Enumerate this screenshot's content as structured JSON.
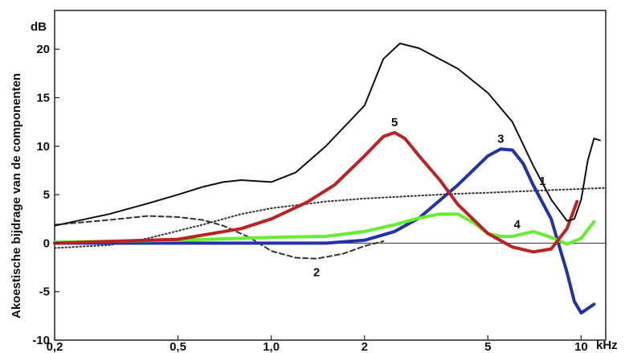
{
  "chart_data": {
    "type": "line",
    "title": "",
    "xlabel": "kHz",
    "ylabel": "Akoestische bijdrage van de componenten",
    "yunit": "dB",
    "x_scale": "log",
    "xlim": [
      0.2,
      12
    ],
    "ylim": [
      -10,
      24
    ],
    "x_ticks": [
      {
        "value": 0.2,
        "label": "0,2"
      },
      {
        "value": 0.5,
        "label": "0,5"
      },
      {
        "value": 1.0,
        "label": "1,0"
      },
      {
        "value": 2,
        "label": "2"
      },
      {
        "value": 5,
        "label": "5"
      },
      {
        "value": 10,
        "label": "10"
      }
    ],
    "y_ticks": [
      {
        "value": 20,
        "label": "20"
      },
      {
        "value": 15,
        "label": "15"
      },
      {
        "value": 10,
        "label": "10"
      },
      {
        "value": 5,
        "label": "5"
      },
      {
        "value": 0,
        "label": "0"
      },
      {
        "value": -5,
        "label": "-5"
      },
      {
        "value": -10,
        "label": "-10"
      }
    ],
    "grid": false,
    "series": [
      {
        "name": "",
        "label": "1",
        "color": "#333333",
        "style": "dotted",
        "x": [
          0.2,
          0.3,
          0.4,
          0.6,
          0.8,
          1.0,
          1.5,
          2.0,
          3.0,
          4.0,
          5.0,
          7.0,
          10.0,
          12.0
        ],
        "y": [
          -0.5,
          -0.2,
          0.5,
          1.9,
          3.0,
          3.6,
          4.3,
          4.6,
          4.9,
          5.1,
          5.2,
          5.4,
          5.6,
          5.7
        ]
      },
      {
        "name": "",
        "label": "2",
        "color": "#333333",
        "style": "dashed",
        "x": [
          0.2,
          0.3,
          0.4,
          0.5,
          0.6,
          0.7,
          0.85,
          1.0,
          1.2,
          1.4,
          1.7,
          2.0,
          2.3
        ],
        "y": [
          1.9,
          2.4,
          2.8,
          2.7,
          2.4,
          1.8,
          0.6,
          -0.8,
          -1.5,
          -1.6,
          -1.1,
          -0.3,
          0.2
        ]
      },
      {
        "name": "",
        "label": "3",
        "color": "#2233aa",
        "style": "solid",
        "x": [
          0.2,
          1.0,
          1.5,
          2.0,
          2.5,
          3.0,
          4.0,
          5.0,
          5.5,
          6.0,
          6.5,
          7.0,
          8.0,
          9.0,
          9.5,
          10.0,
          11.0
        ],
        "y": [
          0.0,
          0.0,
          0.0,
          0.3,
          1.2,
          2.6,
          6.0,
          9.0,
          9.7,
          9.6,
          8.2,
          6.0,
          2.5,
          -3.0,
          -6.0,
          -7.2,
          -6.3
        ]
      },
      {
        "name": "",
        "label": "4",
        "color": "#66ee33",
        "style": "solid",
        "x": [
          0.2,
          0.5,
          1.0,
          1.5,
          2.0,
          2.5,
          3.0,
          3.5,
          4.0,
          4.5,
          5.0,
          5.5,
          6.0,
          7.0,
          8.0,
          9.0,
          10.0,
          11.0
        ],
        "y": [
          0.1,
          0.3,
          0.6,
          0.7,
          1.2,
          1.9,
          2.6,
          3.0,
          3.0,
          2.1,
          1.0,
          0.7,
          0.7,
          1.2,
          0.6,
          -0.1,
          0.5,
          2.2
        ]
      },
      {
        "name": "",
        "label": "5",
        "color": "#bb2222",
        "style": "solid",
        "x": [
          0.2,
          0.5,
          0.8,
          1.0,
          1.3,
          1.6,
          2.0,
          2.3,
          2.5,
          2.7,
          3.0,
          3.5,
          4.0,
          5.0,
          6.0,
          7.0,
          8.0,
          9.0,
          9.7
        ],
        "y": [
          0.0,
          0.4,
          1.5,
          2.5,
          4.2,
          6.0,
          9.0,
          11.0,
          11.4,
          10.8,
          9.0,
          6.5,
          4.0,
          1.0,
          -0.4,
          -0.9,
          -0.6,
          1.5,
          4.3
        ]
      },
      {
        "name": "",
        "label": "",
        "color": "#111111",
        "style": "solid",
        "x": [
          0.2,
          0.3,
          0.4,
          0.5,
          0.6,
          0.7,
          0.8,
          0.9,
          1.0,
          1.2,
          1.5,
          2.0,
          2.3,
          2.6,
          3.0,
          4.0,
          5.0,
          6.0,
          7.0,
          8.0,
          9.0,
          9.5,
          10.0,
          10.5,
          11.0,
          11.5
        ],
        "y": [
          1.8,
          3.0,
          4.1,
          5.0,
          5.8,
          6.3,
          6.5,
          6.4,
          6.3,
          7.3,
          10.0,
          14.2,
          19.0,
          20.6,
          20.1,
          18.0,
          15.5,
          12.5,
          8.0,
          4.5,
          2.3,
          2.5,
          4.5,
          8.5,
          10.8,
          10.6
        ]
      }
    ]
  }
}
